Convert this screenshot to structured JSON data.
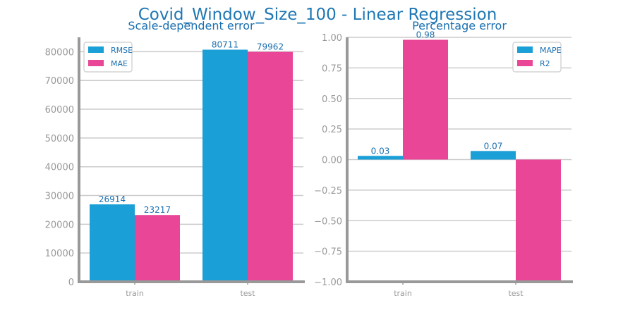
{
  "title": "Covid_Window_Size_100 - Linear Regression",
  "colors": {
    "blue": "#1a9fd6",
    "pink": "#ea4698",
    "text": "#1a6fb0",
    "grid": "#cccccc",
    "axis": "#999999",
    "tick": "#999999"
  },
  "chart_data": [
    {
      "type": "bar",
      "title": "Scale-dependent error",
      "categories": [
        "train",
        "test"
      ],
      "series": [
        {
          "name": "RMSE",
          "values": [
            26914,
            80711
          ],
          "labels": [
            "26914",
            "80711"
          ]
        },
        {
          "name": "MAE",
          "values": [
            23217,
            79962
          ],
          "labels": [
            "23217",
            "79962"
          ]
        }
      ],
      "ylim": [
        0,
        85000
      ],
      "yticks": [
        0,
        10000,
        20000,
        30000,
        40000,
        50000,
        60000,
        70000,
        80000
      ],
      "ytick_labels": [
        "0",
        "10000",
        "20000",
        "30000",
        "40000",
        "50000",
        "60000",
        "70000",
        "80000"
      ],
      "grid": true,
      "legend": "top-left"
    },
    {
      "type": "bar",
      "title": "Percentage error",
      "categories": [
        "train",
        "test"
      ],
      "series": [
        {
          "name": "MAPE",
          "values": [
            0.03,
            0.07
          ],
          "labels": [
            "0.03",
            "0.07"
          ]
        },
        {
          "name": "R2",
          "values": [
            0.98,
            -1.0
          ],
          "labels": [
            "0.98",
            ""
          ]
        }
      ],
      "ylim": [
        -1.0,
        1.0
      ],
      "yticks": [
        -1.0,
        -0.75,
        -0.5,
        -0.25,
        0.0,
        0.25,
        0.5,
        0.75,
        1.0
      ],
      "ytick_labels": [
        "−1.00",
        "−0.75",
        "−0.50",
        "−0.25",
        "0.00",
        "0.25",
        "0.50",
        "0.75",
        "1.00"
      ],
      "grid": true,
      "legend": "top-right"
    }
  ]
}
